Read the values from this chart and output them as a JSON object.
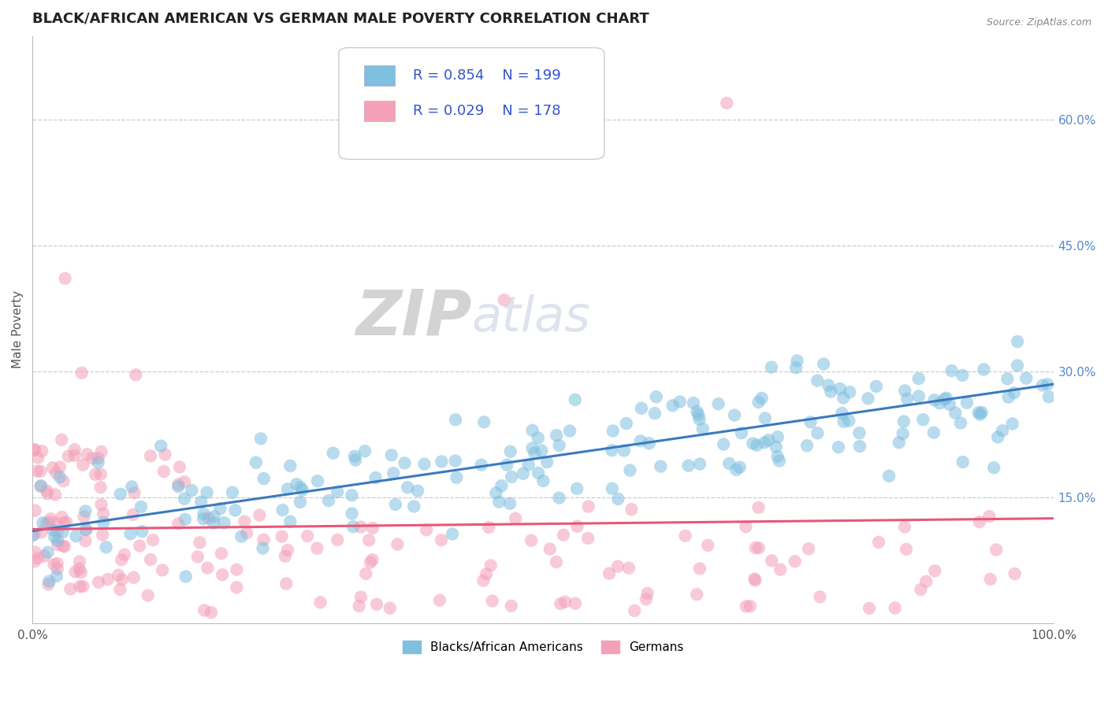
{
  "title": "BLACK/AFRICAN AMERICAN VS GERMAN MALE POVERTY CORRELATION CHART",
  "source_text": "Source: ZipAtlas.com",
  "ylabel": "Male Poverty",
  "xlim": [
    0,
    100
  ],
  "ylim": [
    0,
    70
  ],
  "yticks": [
    15,
    30,
    45,
    60
  ],
  "ytick_labels": [
    "15.0%",
    "30.0%",
    "45.0%",
    "60.0%"
  ],
  "xtick_labels": [
    "0.0%",
    "100.0%"
  ],
  "legend_R1": "R = 0.854",
  "legend_N1": "N = 199",
  "legend_R2": "R = 0.029",
  "legend_N2": "N = 178",
  "blue_color": "#7fbfdf",
  "pink_color": "#f4a0b8",
  "blue_line_color": "#3a7abf",
  "pink_line_color": "#e8567a",
  "blue_N": 199,
  "pink_N": 178,
  "legend_label_blue": "Blacks/African Americans",
  "legend_label_pink": "Germans",
  "watermark_zip": "ZIP",
  "watermark_atlas": "atlas",
  "background_color": "#ffffff",
  "grid_color": "#cccccc",
  "title_fontsize": 13,
  "axis_label_fontsize": 11,
  "legend_text_color": "#3355cc",
  "legend_R_color": "#000000"
}
